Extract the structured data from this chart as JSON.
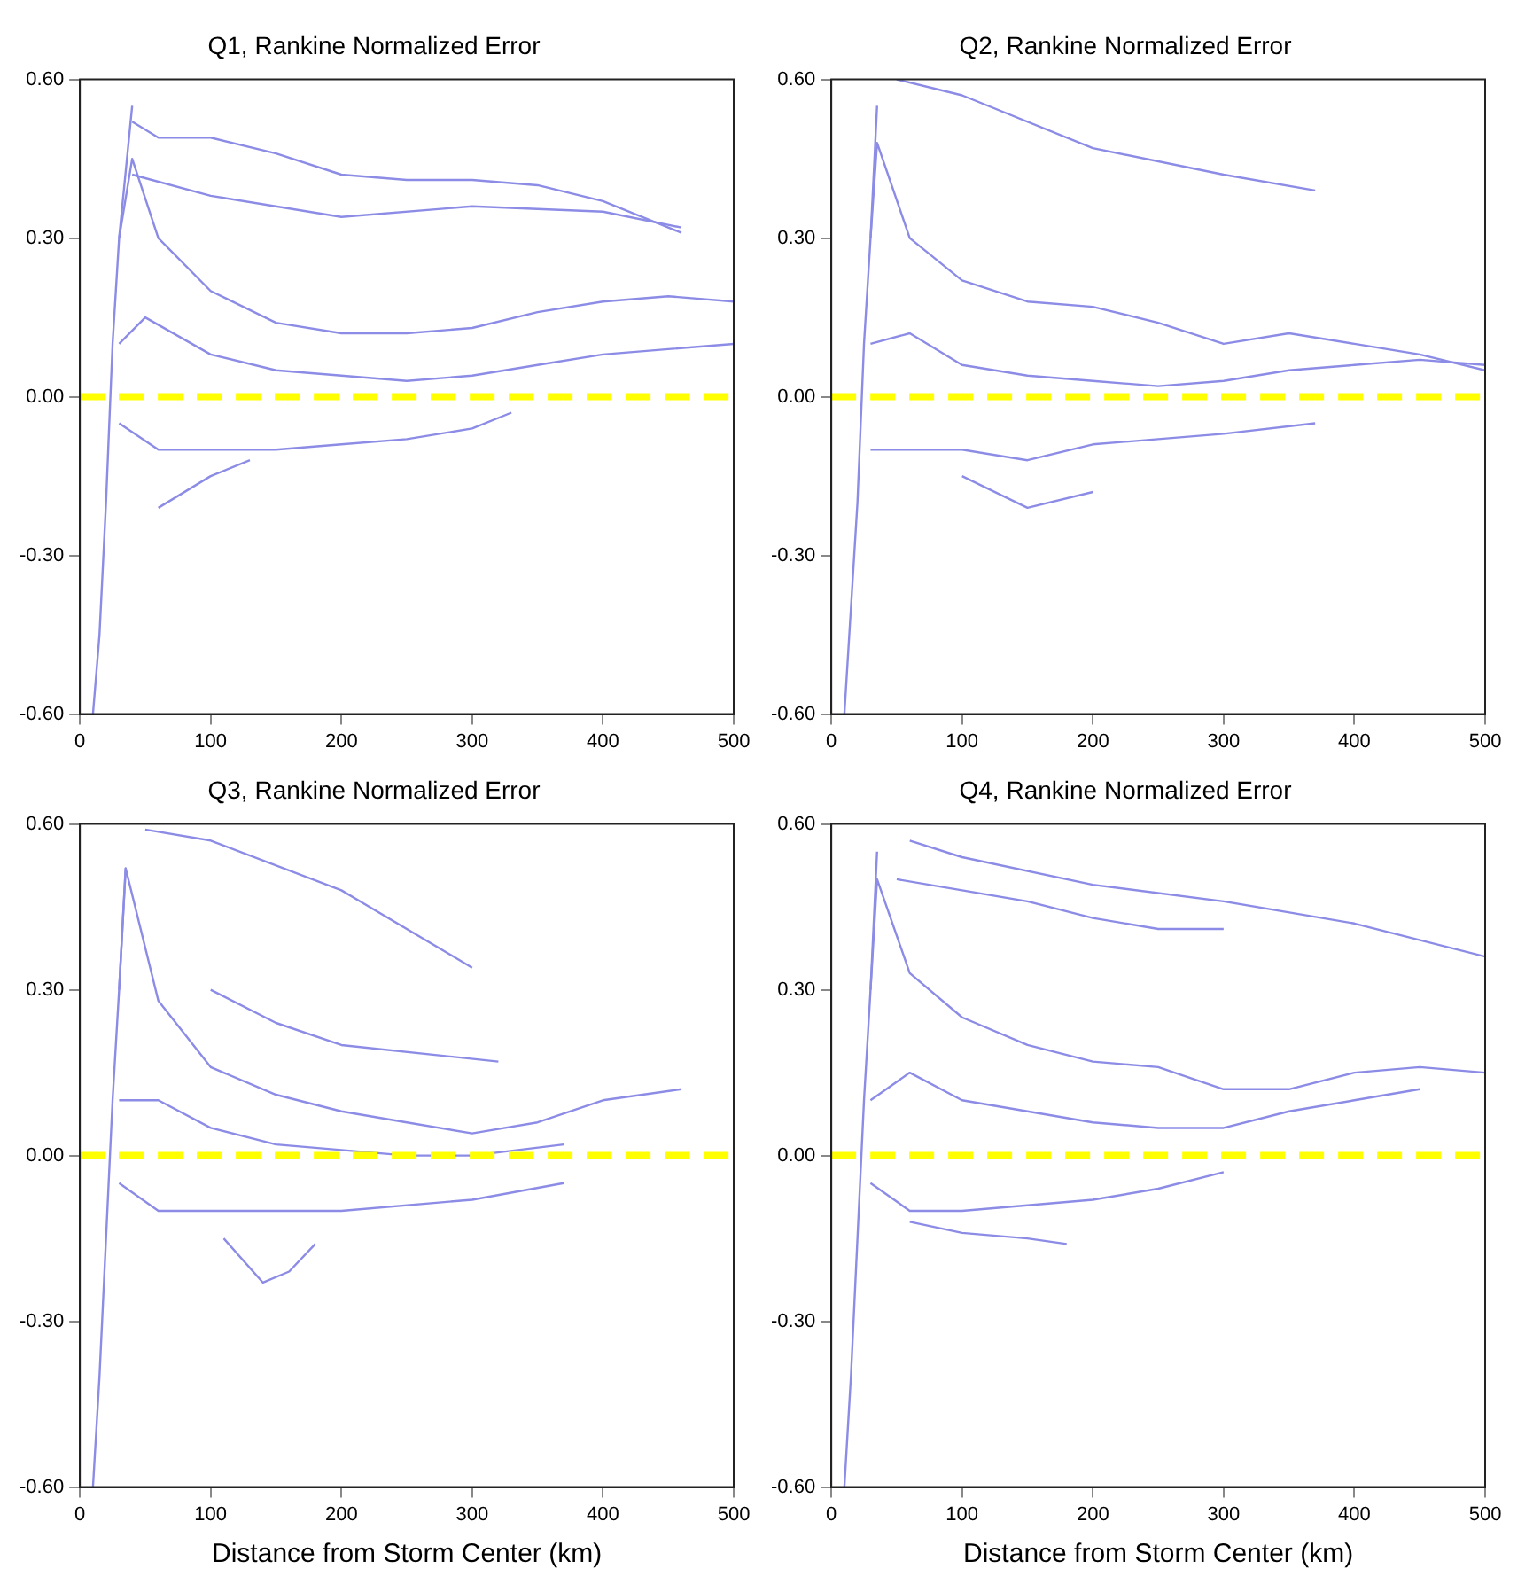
{
  "chart_data": [
    {
      "type": "line",
      "title": "Q1, Rankine Normalized Error",
      "marker": "none",
      "line_style": "solid",
      "grid": false,
      "legend": false,
      "xlim": [
        0,
        500
      ],
      "xticks": [
        0,
        100,
        200,
        300,
        400,
        500
      ],
      "ylim": [
        -0.6,
        0.6
      ],
      "yticks": [
        {
          "value": -0.6,
          "label": "-0.60"
        },
        {
          "value": -0.3,
          "label": "-0.30"
        },
        {
          "value": 0,
          "label": "0.00"
        },
        {
          "value": 0.3,
          "label": "0.30"
        },
        {
          "value": 0.6,
          "label": "0.60"
        }
      ],
      "ref_lines": [
        {
          "axis": "y",
          "value": 0,
          "color": "#ffff00",
          "line_style": "dashed"
        }
      ],
      "series": [
        {
          "color": "#8c8ce6",
          "x": [
            40,
            60,
            100,
            150,
            200,
            250,
            300,
            350,
            400,
            460
          ],
          "values": [
            0.52,
            0.49,
            0.49,
            0.46,
            0.42,
            0.41,
            0.41,
            0.4,
            0.37,
            0.31
          ]
        },
        {
          "color": "#8c8ce6",
          "x": [
            40,
            100,
            200,
            300,
            400,
            460
          ],
          "values": [
            0.42,
            0.38,
            0.34,
            0.36,
            0.35,
            0.32
          ]
        },
        {
          "color": "#8c8ce6",
          "x": [
            30,
            40,
            60,
            100,
            150,
            200,
            250,
            300,
            350,
            400,
            450,
            500
          ],
          "values": [
            0.3,
            0.45,
            0.3,
            0.2,
            0.14,
            0.12,
            0.12,
            0.13,
            0.16,
            0.18,
            0.19,
            0.18
          ]
        },
        {
          "color": "#8c8ce6",
          "x": [
            30,
            50,
            100,
            150,
            200,
            250,
            300,
            350,
            400,
            450,
            500
          ],
          "values": [
            0.1,
            0.15,
            0.08,
            0.05,
            0.04,
            0.03,
            0.04,
            0.06,
            0.08,
            0.09,
            0.1
          ]
        },
        {
          "color": "#8c8ce6",
          "x": [
            30,
            60,
            100,
            150,
            200,
            250,
            300,
            330
          ],
          "values": [
            -0.05,
            -0.1,
            -0.1,
            -0.1,
            -0.09,
            -0.08,
            -0.06,
            -0.03
          ]
        },
        {
          "color": "#8c8ce6",
          "x": [
            60,
            100,
            130
          ],
          "values": [
            -0.21,
            -0.15,
            -0.12
          ]
        },
        {
          "color": "#8c8ce6",
          "x": [
            10,
            15,
            20,
            25,
            30,
            40
          ],
          "values": [
            -0.6,
            -0.45,
            -0.2,
            0.1,
            0.3,
            0.55
          ]
        }
      ]
    },
    {
      "type": "line",
      "title": "Q2, Rankine Normalized Error",
      "marker": "none",
      "line_style": "solid",
      "grid": false,
      "legend": false,
      "xlim": [
        0,
        500
      ],
      "xticks": [
        0,
        100,
        200,
        300,
        400,
        500
      ],
      "ylim": [
        -0.6,
        0.6
      ],
      "yticks": [
        {
          "value": -0.6,
          "label": "-0.60"
        },
        {
          "value": -0.3,
          "label": "-0.30"
        },
        {
          "value": 0,
          "label": "0.00"
        },
        {
          "value": 0.3,
          "label": "0.30"
        },
        {
          "value": 0.6,
          "label": "0.60"
        }
      ],
      "ref_lines": [
        {
          "axis": "y",
          "value": 0,
          "color": "#ffff00",
          "line_style": "dashed"
        }
      ],
      "series": [
        {
          "color": "#8c8ce6",
          "x": [
            50,
            100,
            200,
            300,
            370
          ],
          "values": [
            0.6,
            0.57,
            0.47,
            0.42,
            0.39
          ]
        },
        {
          "color": "#8c8ce6",
          "x": [
            30,
            35,
            60,
            100,
            150,
            200,
            250,
            300,
            350,
            400,
            450,
            500
          ],
          "values": [
            0.3,
            0.48,
            0.3,
            0.22,
            0.18,
            0.17,
            0.14,
            0.1,
            0.12,
            0.1,
            0.08,
            0.05
          ]
        },
        {
          "color": "#8c8ce6",
          "x": [
            30,
            60,
            100,
            150,
            200,
            250,
            300,
            350,
            400,
            450,
            500
          ],
          "values": [
            0.1,
            0.12,
            0.06,
            0.04,
            0.03,
            0.02,
            0.03,
            0.05,
            0.06,
            0.07,
            0.06
          ]
        },
        {
          "color": "#8c8ce6",
          "x": [
            30,
            60,
            100,
            150,
            200,
            300,
            370
          ],
          "values": [
            -0.1,
            -0.1,
            -0.1,
            -0.12,
            -0.09,
            -0.07,
            -0.05
          ]
        },
        {
          "color": "#8c8ce6",
          "x": [
            100,
            150,
            200
          ],
          "values": [
            -0.15,
            -0.21,
            -0.18
          ]
        },
        {
          "color": "#8c8ce6",
          "x": [
            10,
            15,
            20,
            25,
            30,
            35
          ],
          "values": [
            -0.6,
            -0.4,
            -0.2,
            0.1,
            0.3,
            0.55
          ]
        }
      ]
    },
    {
      "type": "line",
      "title": "Q3, Rankine Normalized Error",
      "xlabel": "Distance from Storm Center (km)",
      "marker": "none",
      "line_style": "solid",
      "grid": false,
      "legend": false,
      "xlim": [
        0,
        500
      ],
      "xticks": [
        0,
        100,
        200,
        300,
        400,
        500
      ],
      "ylim": [
        -0.6,
        0.6
      ],
      "yticks": [
        {
          "value": -0.6,
          "label": "-0.60"
        },
        {
          "value": -0.3,
          "label": "-0.30"
        },
        {
          "value": 0,
          "label": "0.00"
        },
        {
          "value": 0.3,
          "label": "0.30"
        },
        {
          "value": 0.6,
          "label": "0.60"
        }
      ],
      "ref_lines": [
        {
          "axis": "y",
          "value": 0,
          "color": "#ffff00",
          "line_style": "dashed"
        }
      ],
      "series": [
        {
          "color": "#8c8ce6",
          "x": [
            50,
            100,
            200,
            300
          ],
          "values": [
            0.59,
            0.57,
            0.48,
            0.34
          ]
        },
        {
          "color": "#8c8ce6",
          "x": [
            100,
            150,
            200,
            320
          ],
          "values": [
            0.3,
            0.24,
            0.2,
            0.17
          ]
        },
        {
          "color": "#8c8ce6",
          "x": [
            30,
            35,
            60,
            100,
            150,
            200,
            250,
            300,
            350,
            400,
            460
          ],
          "values": [
            0.3,
            0.52,
            0.28,
            0.16,
            0.11,
            0.08,
            0.06,
            0.04,
            0.06,
            0.1,
            0.12
          ]
        },
        {
          "color": "#8c8ce6",
          "x": [
            30,
            60,
            100,
            150,
            200,
            250,
            300,
            370
          ],
          "values": [
            0.1,
            0.1,
            0.05,
            0.02,
            0.01,
            0,
            0,
            0.02
          ]
        },
        {
          "color": "#8c8ce6",
          "x": [
            30,
            60,
            100,
            150,
            200,
            300,
            370
          ],
          "values": [
            -0.05,
            -0.1,
            -0.1,
            -0.1,
            -0.1,
            -0.08,
            -0.05
          ]
        },
        {
          "color": "#8c8ce6",
          "x": [
            110,
            140,
            160,
            180
          ],
          "values": [
            -0.15,
            -0.23,
            -0.21,
            -0.16
          ]
        },
        {
          "color": "#8c8ce6",
          "x": [
            10,
            15,
            20,
            25,
            30,
            35
          ],
          "values": [
            -0.6,
            -0.4,
            -0.15,
            0.1,
            0.3,
            0.52
          ]
        }
      ]
    },
    {
      "type": "line",
      "title": "Q4, Rankine Normalized Error",
      "xlabel": "Distance from Storm Center (km)",
      "marker": "none",
      "line_style": "solid",
      "grid": false,
      "legend": false,
      "xlim": [
        0,
        500
      ],
      "xticks": [
        0,
        100,
        200,
        300,
        400,
        500
      ],
      "ylim": [
        -0.6,
        0.6
      ],
      "yticks": [
        {
          "value": -0.6,
          "label": "-0.60"
        },
        {
          "value": -0.3,
          "label": "-0.30"
        },
        {
          "value": 0,
          "label": "0.00"
        },
        {
          "value": 0.3,
          "label": "0.30"
        },
        {
          "value": 0.6,
          "label": "0.60"
        }
      ],
      "ref_lines": [
        {
          "axis": "y",
          "value": 0,
          "color": "#ffff00",
          "line_style": "dashed"
        }
      ],
      "series": [
        {
          "color": "#8c8ce6",
          "x": [
            60,
            100,
            200,
            300,
            400,
            500
          ],
          "values": [
            0.57,
            0.54,
            0.49,
            0.46,
            0.42,
            0.36
          ]
        },
        {
          "color": "#8c8ce6",
          "x": [
            50,
            100,
            150,
            200,
            250,
            300
          ],
          "values": [
            0.5,
            0.48,
            0.46,
            0.43,
            0.41,
            0.41
          ]
        },
        {
          "color": "#8c8ce6",
          "x": [
            30,
            35,
            60,
            100,
            150,
            200,
            250,
            300,
            350,
            400,
            450,
            500
          ],
          "values": [
            0.3,
            0.5,
            0.33,
            0.25,
            0.2,
            0.17,
            0.16,
            0.12,
            0.12,
            0.15,
            0.16,
            0.15
          ]
        },
        {
          "color": "#8c8ce6",
          "x": [
            30,
            60,
            100,
            150,
            200,
            250,
            300,
            350,
            400,
            450
          ],
          "values": [
            0.1,
            0.15,
            0.1,
            0.08,
            0.06,
            0.05,
            0.05,
            0.08,
            0.1,
            0.12
          ]
        },
        {
          "color": "#8c8ce6",
          "x": [
            30,
            60,
            100,
            150,
            200,
            250,
            300
          ],
          "values": [
            -0.05,
            -0.1,
            -0.1,
            -0.09,
            -0.08,
            -0.06,
            -0.03
          ]
        },
        {
          "color": "#8c8ce6",
          "x": [
            60,
            100,
            150,
            180
          ],
          "values": [
            -0.12,
            -0.14,
            -0.15,
            -0.16
          ]
        },
        {
          "color": "#8c8ce6",
          "x": [
            10,
            15,
            20,
            25,
            30,
            35
          ],
          "values": [
            -0.6,
            -0.4,
            -0.15,
            0.1,
            0.3,
            0.55
          ]
        }
      ]
    }
  ]
}
